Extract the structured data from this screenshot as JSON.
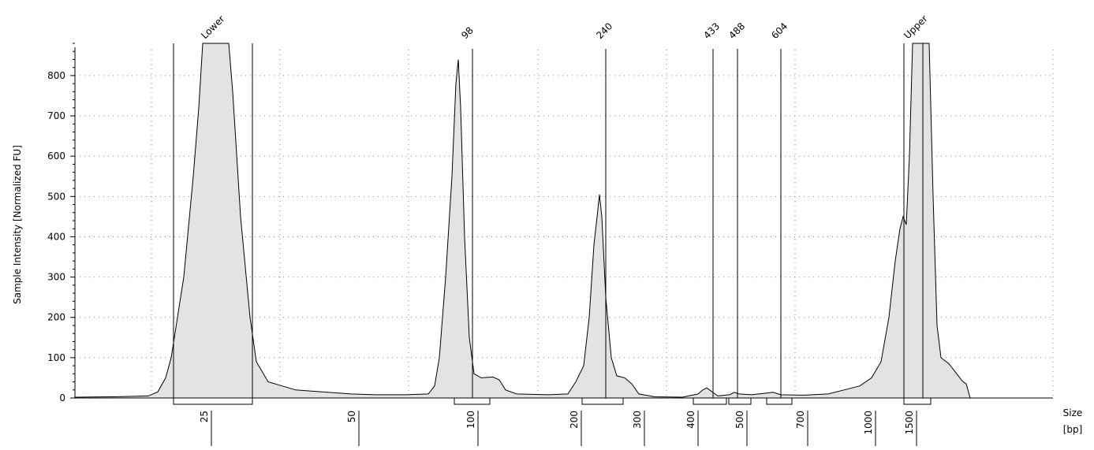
{
  "chart_data": {
    "type": "area",
    "ylabel": "Sample Intensity [Normalized FU]",
    "xlabel_line1": "Size",
    "xlabel_line2": "[bp]",
    "ylim": [
      0,
      880
    ],
    "yticks": [
      0,
      100,
      200,
      300,
      400,
      500,
      600,
      700,
      800
    ],
    "grid": true,
    "size_ticks": [
      "25",
      "50",
      "100",
      "200",
      "300",
      "400",
      "500",
      "700",
      "1000",
      "1500"
    ],
    "peak_labels": [
      "Lower",
      "98",
      "240",
      "433",
      "488",
      "604",
      "Upper"
    ],
    "trace": {
      "name": "",
      "points": [
        [
          0,
          2
        ],
        [
          50,
          3
        ],
        [
          93,
          5
        ],
        [
          105,
          15
        ],
        [
          115,
          50
        ],
        [
          122,
          100
        ],
        [
          138,
          300
        ],
        [
          150,
          550
        ],
        [
          157,
          720
        ],
        [
          162,
          880
        ],
        [
          195,
          880
        ],
        [
          200,
          760
        ],
        [
          210,
          450
        ],
        [
          222,
          200
        ],
        [
          230,
          90
        ],
        [
          245,
          40
        ],
        [
          280,
          20
        ],
        [
          350,
          10
        ],
        [
          380,
          8
        ],
        [
          420,
          8
        ],
        [
          448,
          10
        ],
        [
          456,
          30
        ],
        [
          462,
          100
        ],
        [
          470,
          300
        ],
        [
          478,
          550
        ],
        [
          483,
          780
        ],
        [
          486,
          840
        ],
        [
          489,
          720
        ],
        [
          494,
          400
        ],
        [
          500,
          150
        ],
        [
          506,
          60
        ],
        [
          515,
          50
        ],
        [
          530,
          52
        ],
        [
          538,
          45
        ],
        [
          546,
          20
        ],
        [
          560,
          10
        ],
        [
          600,
          8
        ],
        [
          625,
          10
        ],
        [
          635,
          40
        ],
        [
          645,
          80
        ],
        [
          652,
          200
        ],
        [
          658,
          380
        ],
        [
          662,
          450
        ],
        [
          665,
          505
        ],
        [
          668,
          450
        ],
        [
          673,
          250
        ],
        [
          680,
          100
        ],
        [
          687,
          55
        ],
        [
          697,
          50
        ],
        [
          706,
          35
        ],
        [
          715,
          10
        ],
        [
          735,
          3
        ],
        [
          770,
          2
        ],
        [
          790,
          10
        ],
        [
          796,
          20
        ],
        [
          801,
          25
        ],
        [
          806,
          18
        ],
        [
          815,
          5
        ],
        [
          830,
          8
        ],
        [
          836,
          14
        ],
        [
          842,
          10
        ],
        [
          858,
          8
        ],
        [
          876,
          12
        ],
        [
          885,
          14
        ],
        [
          895,
          8
        ],
        [
          925,
          7
        ],
        [
          955,
          10
        ],
        [
          975,
          20
        ],
        [
          995,
          30
        ],
        [
          1010,
          50
        ],
        [
          1022,
          90
        ],
        [
          1032,
          200
        ],
        [
          1040,
          340
        ],
        [
          1046,
          420
        ],
        [
          1050,
          450
        ],
        [
          1054,
          430
        ],
        [
          1058,
          600
        ],
        [
          1062,
          880
        ],
        [
          1083,
          880
        ],
        [
          1088,
          500
        ],
        [
          1093,
          180
        ],
        [
          1098,
          100
        ],
        [
          1108,
          85
        ],
        [
          1118,
          60
        ],
        [
          1125,
          42
        ],
        [
          1130,
          35
        ],
        [
          1135,
          0
        ]
      ]
    }
  }
}
